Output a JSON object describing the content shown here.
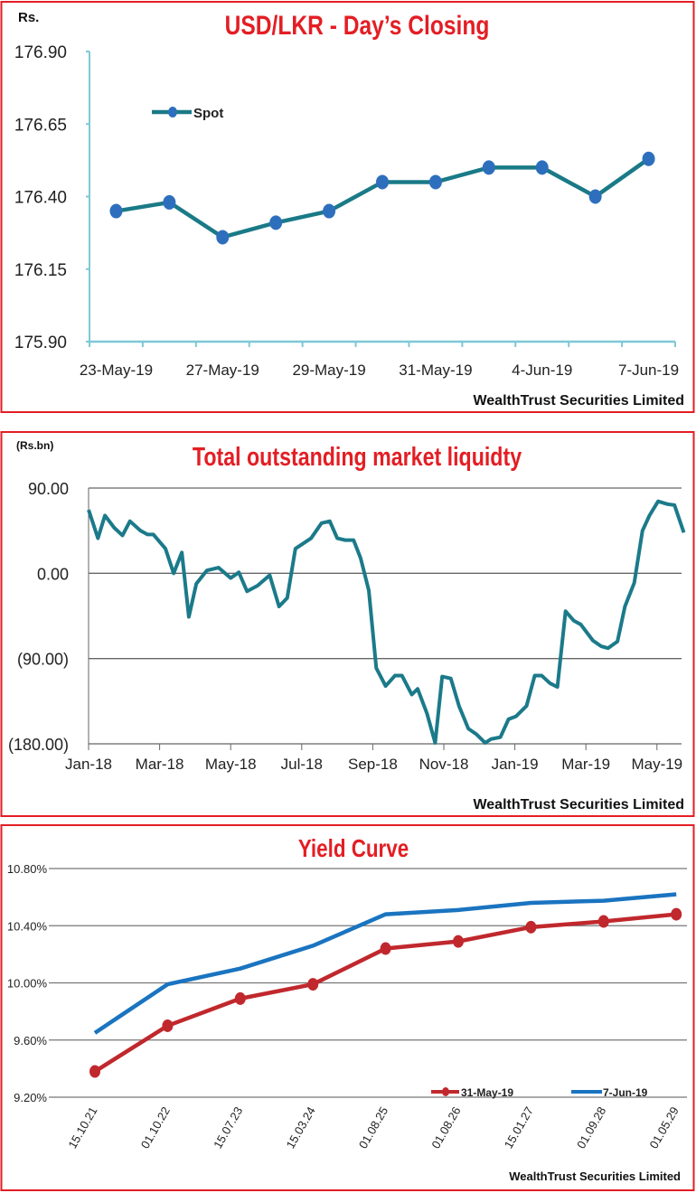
{
  "colors": {
    "border": "#e31e24",
    "title": "#e31e24",
    "spot_line": "#1a7a87",
    "spot_marker": "#2e6fbd",
    "liquidity_line": "#1b7a8a",
    "series_31may": "#c0282d",
    "series_7jun": "#1a74c0",
    "axis": "#7ec8d8"
  },
  "chart_data": [
    {
      "type": "line",
      "title": "USD/LKR - Day’s Closing",
      "ylabel": "Rs.",
      "source": "WealthTrust Securities Limited",
      "ylim": [
        175.9,
        176.9
      ],
      "yticks": [
        "176.90",
        "176.65",
        "176.40",
        "176.15",
        "175.90"
      ],
      "ytick_values": [
        176.9,
        176.65,
        176.4,
        176.15,
        175.9
      ],
      "categories": [
        "23-May-19",
        "",
        "27-May-19",
        "",
        "29-May-19",
        "",
        "31-May-19",
        "",
        "4-Jun-19",
        "",
        "7-Jun-19"
      ],
      "legend": "top-left",
      "grid": false,
      "series": [
        {
          "name": "Spot",
          "values": [
            176.35,
            176.38,
            176.26,
            176.31,
            176.35,
            176.45,
            176.45,
            176.5,
            176.5,
            176.4,
            176.53
          ]
        }
      ]
    },
    {
      "type": "line",
      "title": "Total outstanding market liquidty",
      "ylabel": "(Rs.bn)",
      "source": "WealthTrust Securities Limited",
      "ylim": [
        -180,
        90
      ],
      "yticks": [
        "90.00",
        "0.00",
        "(90.00)",
        "(180.00)"
      ],
      "ytick_values": [
        90,
        0,
        -90,
        -180
      ],
      "xticks": [
        "Jan-18",
        "Mar-18",
        "May-18",
        "Jul-18",
        "Sep-18",
        "Nov-18",
        "Jan-19",
        "Mar-19",
        "May-19"
      ],
      "xtick_dates": [
        "2018-01-01",
        "2018-03-01",
        "2018-05-01",
        "2018-07-01",
        "2018-09-01",
        "2018-11-01",
        "2019-01-01",
        "2019-03-01",
        "2019-05-01"
      ],
      "grid": true,
      "x": [
        "2018-01-01",
        "2018-01-09",
        "2018-01-15",
        "2018-01-23",
        "2018-01-30",
        "2018-02-06",
        "2018-02-15",
        "2018-02-21",
        "2018-02-26",
        "2018-03-06",
        "2018-03-13",
        "2018-03-20",
        "2018-03-26",
        "2018-04-02",
        "2018-04-11",
        "2018-04-21",
        "2018-05-01",
        "2018-05-08",
        "2018-05-15",
        "2018-05-24",
        "2018-06-04",
        "2018-06-12",
        "2018-06-19",
        "2018-06-26",
        "2018-07-09",
        "2018-07-18",
        "2018-07-25",
        "2018-08-01",
        "2018-08-08",
        "2018-08-15",
        "2018-08-21",
        "2018-08-28",
        "2018-09-04",
        "2018-09-12",
        "2018-09-20",
        "2018-09-26",
        "2018-10-04",
        "2018-10-09",
        "2018-10-17",
        "2018-10-24",
        "2018-10-30",
        "2018-11-07",
        "2018-11-14",
        "2018-11-22",
        "2018-11-29",
        "2018-12-06",
        "2018-12-11",
        "2018-12-19",
        "2018-12-26",
        "2019-01-02",
        "2019-01-11",
        "2019-01-18",
        "2019-01-24",
        "2019-01-31",
        "2019-02-07",
        "2019-02-14",
        "2019-02-21",
        "2019-02-27",
        "2019-03-07",
        "2019-03-14",
        "2019-03-20",
        "2019-03-28",
        "2019-04-04",
        "2019-04-12",
        "2019-04-19",
        "2019-04-25",
        "2019-05-02",
        "2019-05-10",
        "2019-05-16",
        "2019-05-24"
      ],
      "series": [
        {
          "values": [
            67,
            37,
            61,
            48,
            40,
            55,
            45,
            41,
            41,
            26,
            0,
            22,
            -46,
            -11,
            3,
            6,
            -5,
            1,
            -19,
            -13,
            -2,
            -35,
            -26,
            26,
            37,
            53,
            55,
            37,
            35,
            35,
            16,
            -18,
            -100,
            -119,
            -108,
            -108,
            -128,
            -122,
            -148,
            -179,
            -109,
            -111,
            -140,
            -164,
            -170,
            -179,
            -175,
            -173,
            -154,
            -151,
            -140,
            -108,
            -108,
            -116,
            -120,
            -40,
            -50,
            -54,
            -71,
            -77,
            -79,
            -72,
            -35,
            -10,
            45,
            61,
            76,
            73,
            72,
            43
          ]
        }
      ]
    },
    {
      "type": "line",
      "title": "Yield Curve",
      "source": "WealthTrust Securities Limited",
      "ylim": [
        9.2,
        10.8
      ],
      "yticks": [
        "10.80%",
        "10.40%",
        "10.00%",
        "9.60%",
        "9.20%"
      ],
      "ytick_values": [
        10.8,
        10.4,
        10.0,
        9.6,
        9.2
      ],
      "categories": [
        "15.10.21",
        "01.10.22",
        "15.07.23",
        "15.03.24",
        "01.08.25",
        "01.08.26",
        "15.01.27",
        "01.09.28",
        "01.05.29"
      ],
      "grid": true,
      "legend": "bottom-right",
      "series": [
        {
          "name": "31-May-19",
          "values": [
            9.38,
            9.7,
            9.89,
            9.99,
            10.24,
            10.29,
            10.39,
            10.43,
            10.48
          ]
        },
        {
          "name": "7-Jun-19",
          "values": [
            9.65,
            9.99,
            10.1,
            10.26,
            10.48,
            10.51,
            10.56,
            10.575,
            10.62
          ]
        }
      ]
    }
  ]
}
